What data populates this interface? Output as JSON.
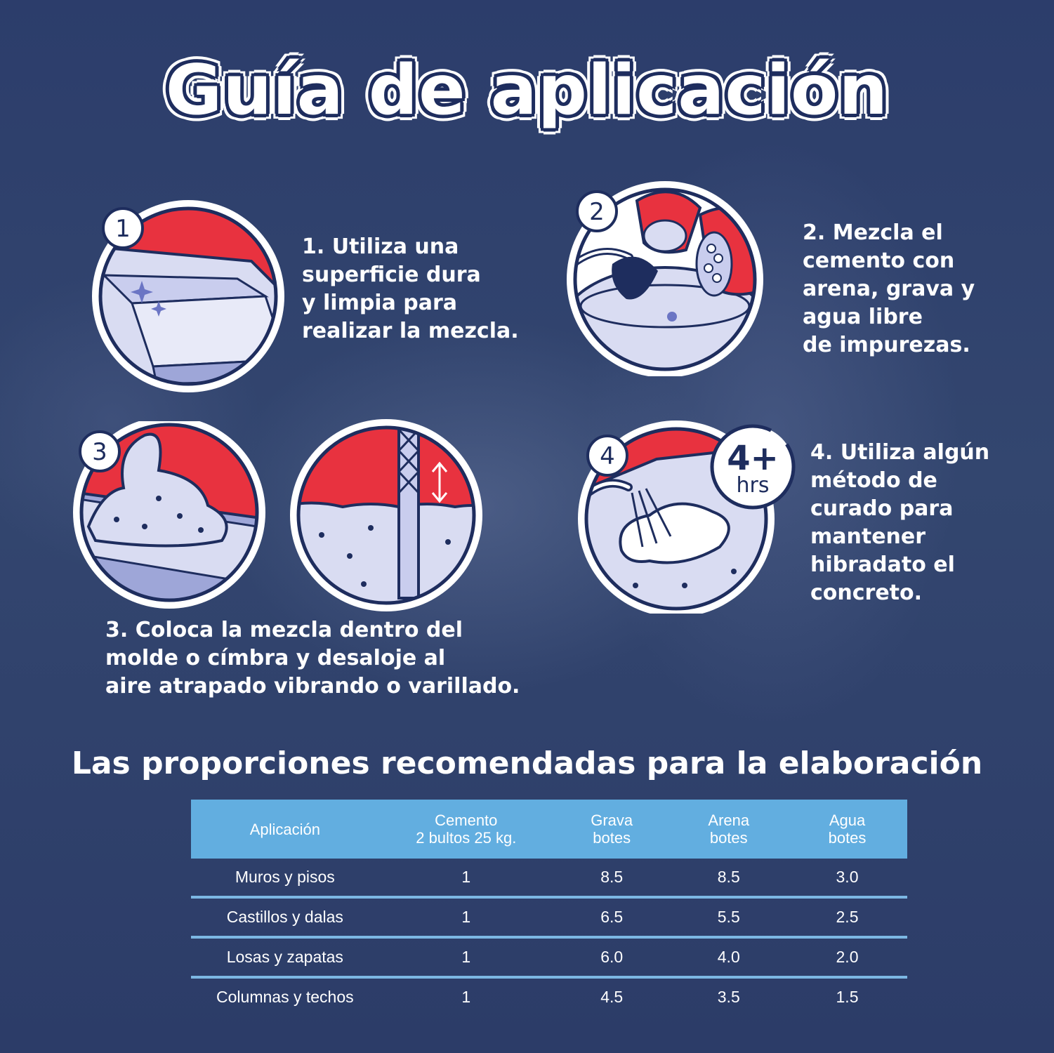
{
  "title": "Guía de aplicación",
  "steps": [
    {
      "number": "1",
      "text": "1. Utiliza una\nsuperficie dura\ny limpia para\nrealizar la mezcla."
    },
    {
      "number": "2",
      "text": "2. Mezcla el\ncemento con\narena, grava y\nagua libre\nde impurezas."
    },
    {
      "number": "3",
      "text": "3. Coloca la mezcla dentro del\nmolde o címbra y desaloje al\naire atrapado vibrando o varillado."
    },
    {
      "number": "4",
      "text": "4. Utiliza algún\nmétodo de\ncurado para\nmantener\nhibradato el\nconcreto.",
      "badge_value": "4+",
      "badge_unit": "hrs"
    }
  ],
  "proportions": {
    "title": "Las proporciones recomendadas para la elaboración",
    "headers": [
      {
        "line1": "Aplicación",
        "line2": ""
      },
      {
        "line1": "Cemento",
        "line2": "2 bultos 25 kg."
      },
      {
        "line1": "Grava",
        "line2": "botes"
      },
      {
        "line1": "Arena",
        "line2": "botes"
      },
      {
        "line1": "Agua",
        "line2": "botes"
      }
    ],
    "rows": [
      [
        "Muros y pisos",
        "1",
        "8.5",
        "8.5",
        "3.0"
      ],
      [
        "Castillos y dalas",
        "1",
        "6.5",
        "5.5",
        "2.5"
      ],
      [
        "Losas y zapatas",
        "1",
        "6.0",
        "4.0",
        "2.0"
      ],
      [
        "Columnas y techos",
        "1",
        "4.5",
        "3.5",
        "1.5"
      ]
    ]
  },
  "colors": {
    "navy": "#1e2d5e",
    "red": "#e8323f",
    "lavender": "#d9dcf2",
    "table_header": "#62aee0",
    "background": "#2e3f6e"
  }
}
